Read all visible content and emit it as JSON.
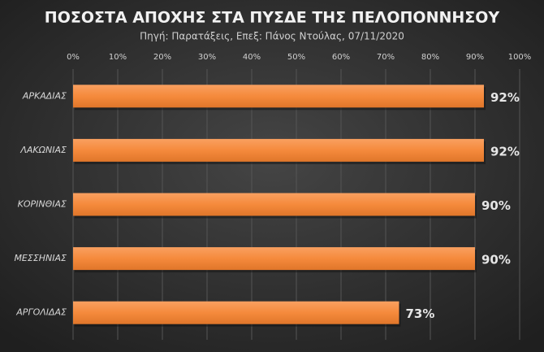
{
  "chart_data": {
    "type": "bar",
    "orientation": "horizontal",
    "title": "ΠΟΣΟΣΤΑ  ΑΠΟΧΗΣ  ΣΤΑ  ΠΥΣΔΕ  ΤΗΣ  ΠΕΛΟΠΟΝΝΗΣΟΥ",
    "subtitle": "Πηγή: Παρατάξεις,  Επεξ: Πάνος Ντούλας,  07/11/2020",
    "categories": [
      "ΑΡΚΑΔΙΑΣ",
      "ΛΑΚΩΝΙΑΣ",
      "ΚΟΡΙΝΘΙΑΣ",
      "ΜΕΣΣΗΝΙΑΣ",
      "ΑΡΓΟΛΙΔΑΣ"
    ],
    "values": [
      92,
      92,
      90,
      90,
      73
    ],
    "value_labels": [
      "92%",
      "92%",
      "90%",
      "90%",
      "73%"
    ],
    "color": "#f58a3c",
    "xlim": [
      0,
      100
    ],
    "xticks": [
      {
        "value": 0,
        "label": "0%"
      },
      {
        "value": 10,
        "label": "10%"
      },
      {
        "value": 20,
        "label": "20%"
      },
      {
        "value": 30,
        "label": "30%"
      },
      {
        "value": 40,
        "label": "40%"
      },
      {
        "value": 50,
        "label": "50%"
      },
      {
        "value": 60,
        "label": "60%"
      },
      {
        "value": 70,
        "label": "70%"
      },
      {
        "value": 80,
        "label": "80%"
      },
      {
        "value": 90,
        "label": "90%"
      },
      {
        "value": 100,
        "label": "100%"
      }
    ],
    "grid": true
  }
}
